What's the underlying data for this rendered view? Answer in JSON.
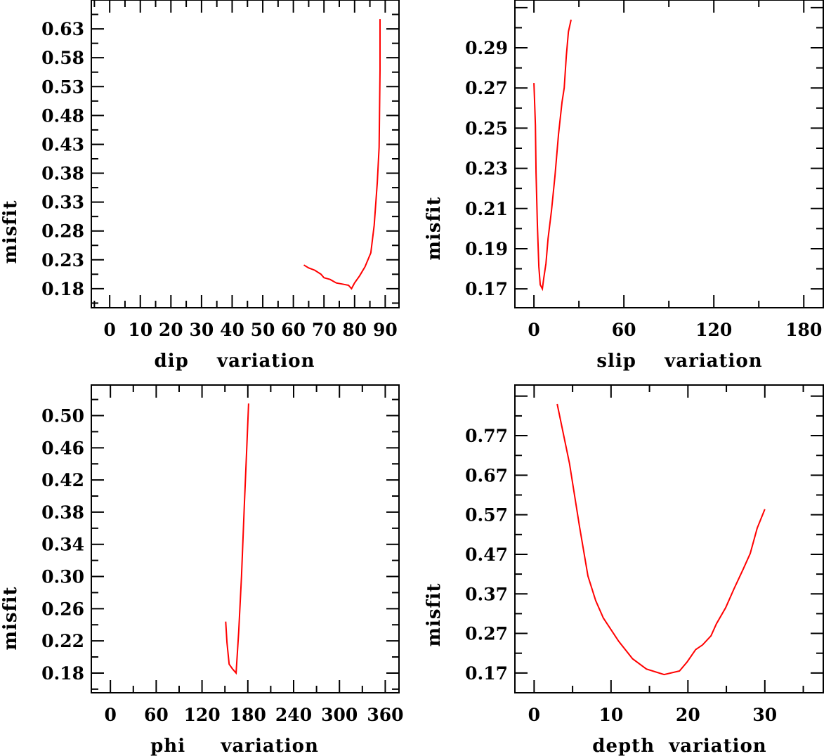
{
  "chart_data": [
    {
      "type": "line",
      "xlabel": "dip    variation",
      "ylabel": "misfit",
      "xlim": [
        -6,
        94.5
      ],
      "ylim": [
        0.147,
        0.68
      ],
      "xticks": [
        0,
        10,
        20,
        30,
        40,
        50,
        60,
        70,
        80,
        90
      ],
      "xtick_labels": [
        "0",
        "10",
        "20",
        "30",
        "40",
        "50",
        "60",
        "70",
        "80",
        "90"
      ],
      "yticks": [
        0.18,
        0.23,
        0.28,
        0.33,
        0.38,
        0.43,
        0.48,
        0.53,
        0.58,
        0.63
      ],
      "ytick_labels": [
        "0.18",
        "0.23",
        "0.28",
        "0.33",
        "0.38",
        "0.43",
        "0.48",
        "0.53",
        "0.58",
        "0.63"
      ],
      "color": "#ff0000",
      "x": [
        63.4,
        65,
        67,
        69,
        70,
        72,
        74,
        76,
        78,
        79,
        80,
        81.6,
        83.4,
        85.3,
        86.4,
        87.4,
        88,
        88.3,
        88.3
      ],
      "y": [
        0.221,
        0.216,
        0.212,
        0.205,
        0.199,
        0.196,
        0.19,
        0.188,
        0.186,
        0.18,
        0.19,
        0.202,
        0.218,
        0.242,
        0.29,
        0.364,
        0.425,
        0.558,
        0.647
      ]
    },
    {
      "type": "line",
      "xlabel": "slip    variation",
      "ylabel": "misfit",
      "xlim": [
        -12.7,
        193
      ],
      "ylim": [
        0.1606,
        0.3138
      ],
      "xticks": [
        0,
        60,
        120,
        180
      ],
      "xtick_labels": [
        "0",
        "60",
        "120",
        "180"
      ],
      "yticks": [
        0.17,
        0.19,
        0.21,
        0.23,
        0.25,
        0.27,
        0.29
      ],
      "ytick_labels": [
        "0.17",
        "0.19",
        "0.21",
        "0.23",
        "0.25",
        "0.27",
        "0.29"
      ],
      "color": "#ff0000",
      "x": [
        0,
        1,
        1.4,
        2.3,
        3.3,
        4.2,
        5.6,
        6.6,
        8,
        9.4,
        11.7,
        14,
        16.4,
        18.75,
        20.2,
        21.6,
        23,
        24.8
      ],
      "y": [
        0.2725,
        0.2515,
        0.228,
        0.202,
        0.181,
        0.172,
        0.17,
        0.1756,
        0.1826,
        0.195,
        0.209,
        0.226,
        0.247,
        0.263,
        0.27,
        0.286,
        0.298,
        0.304
      ]
    },
    {
      "type": "line",
      "xlabel": "phi     variation",
      "ylabel": "misfit",
      "xlim": [
        -25,
        378
      ],
      "ylim": [
        0.1555,
        0.538
      ],
      "xticks": [
        0,
        60,
        120,
        180,
        240,
        300,
        360
      ],
      "xtick_labels": [
        "0",
        "60",
        "120",
        "180",
        "240",
        "300",
        "360"
      ],
      "yticks": [
        0.18,
        0.22,
        0.26,
        0.3,
        0.34,
        0.38,
        0.42,
        0.46,
        0.5
      ],
      "ytick_labels": [
        "0.18",
        "0.22",
        "0.26",
        "0.30",
        "0.34",
        "0.38",
        "0.42",
        "0.46",
        "0.50"
      ],
      "color": "#ff0000",
      "x": [
        151,
        152.7,
        155.5,
        160,
        164.6,
        168,
        171.7,
        175.4,
        178.5,
        181
      ],
      "y": [
        0.244,
        0.218,
        0.191,
        0.185,
        0.18,
        0.231,
        0.3,
        0.388,
        0.458,
        0.515
      ]
    },
    {
      "type": "line",
      "xlabel": "depth  variation",
      "ylabel": "misfit",
      "xlim": [
        -2.5,
        37.6
      ],
      "ylim": [
        0.12,
        0.898
      ],
      "xticks": [
        0,
        10,
        20,
        30
      ],
      "xtick_labels": [
        "0",
        "10",
        "20",
        "30"
      ],
      "yticks": [
        0.17,
        0.27,
        0.37,
        0.47,
        0.57,
        0.67,
        0.77
      ],
      "ytick_labels": [
        "0.17",
        "0.27",
        "0.37",
        "0.47",
        "0.57",
        "0.67",
        "0.77"
      ],
      "color": "#ff0000",
      "x": [
        3,
        4.6,
        5.9,
        7,
        8,
        9,
        11,
        12.8,
        14.6,
        16.9,
        18.9,
        19.9,
        21,
        21.9,
        23,
        23.7,
        24.9,
        26,
        27.2,
        28.1,
        29,
        30
      ],
      "y": [
        0.85,
        0.7,
        0.54,
        0.415,
        0.353,
        0.309,
        0.25,
        0.206,
        0.18,
        0.166,
        0.175,
        0.198,
        0.229,
        0.241,
        0.264,
        0.294,
        0.335,
        0.383,
        0.433,
        0.472,
        0.536,
        0.584
      ]
    }
  ]
}
